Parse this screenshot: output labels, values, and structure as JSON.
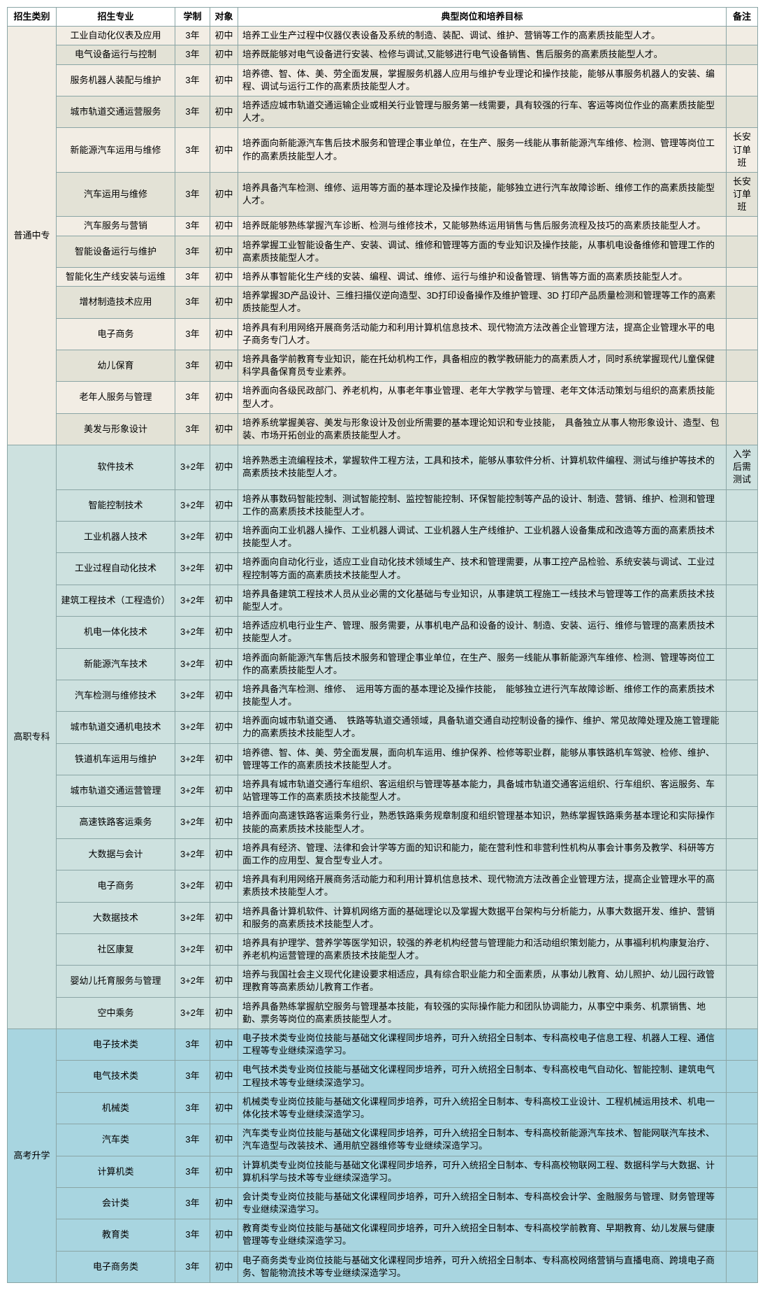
{
  "headers": {
    "cat": "招生类别",
    "major": "招生专业",
    "dur": "学制",
    "obj": "对象",
    "desc": "典型岗位和培养目标",
    "note": "备注"
  },
  "colors": {
    "bg_a": "#f2ede4",
    "bg_b": "#e3e2d6",
    "bg_c": "#cde1df",
    "bg_d": "#a8d5e0",
    "border": "#8aa5a5"
  },
  "sections": [
    {
      "cat": "普通中专",
      "bg_key": "bg_a",
      "alt_bg": true,
      "rows": [
        {
          "major": "工业自动化仪表及应用",
          "dur": "3年",
          "obj": "初中",
          "desc": "培养工业生产过程中仪器仪表设备及系统的制造、装配、调试、维护、营销等工作的高素质技能型人才。",
          "note": ""
        },
        {
          "major": "电气设备运行与控制",
          "dur": "3年",
          "obj": "初中",
          "desc": "培养既能够对电气设备进行安装、检修与调试,又能够进行电气设备销售、售后服务的高素质技能型人才。",
          "note": ""
        },
        {
          "major": "服务机器人装配与维护",
          "dur": "3年",
          "obj": "初中",
          "desc": "培养德、智、体、美、劳全面发展，掌握服务机器人应用与维护专业理论和操作技能，能够从事服务机器人的安装、编程、调试与运行工作的高素质技能型人才。",
          "note": ""
        },
        {
          "major": "城市轨道交通运营服务",
          "dur": "3年",
          "obj": "初中",
          "desc": "培养适应城市轨道交通运输企业或相关行业管理与服务第一线需要，具有较强的行车、客运等岗位作业的高素质技能型人才。",
          "note": ""
        },
        {
          "major": "新能源汽车运用与维修",
          "dur": "3年",
          "obj": "初中",
          "desc": "培养面向新能源汽车售后技术服务和管理企事业单位，在生产、服务一线能从事新能源汽车维修、检测、管理等岗位工作的高素质技能型人才。",
          "note": "长安订单班"
        },
        {
          "major": "汽车运用与维修",
          "dur": "3年",
          "obj": "初中",
          "desc": "培养具备汽车检测、维修、运用等方面的基本理论及操作技能，能够独立进行汽车故障诊断、维修工作的高素质技能型人才。",
          "note": "长安订单班"
        },
        {
          "major": "汽车服务与营销",
          "dur": "3年",
          "obj": "初中",
          "desc": "培养既能够熟练掌握汽车诊断、检测与维修技术，又能够熟练运用销售与售后服务流程及技巧的高素质技能型人才。",
          "note": ""
        },
        {
          "major": "智能设备运行与维护",
          "dur": "3年",
          "obj": "初中",
          "desc": "培养掌握工业智能设备生产、安装、调试、维修和管理等方面的专业知识及操作技能，从事机电设备维修和管理工作的高素质技能型人才。",
          "note": ""
        },
        {
          "major": "智能化生产线安装与运维",
          "dur": "3年",
          "obj": "初中",
          "desc": "培养从事智能化生产线的安装、编程、调试、维修、运行与维护和设备管理、销售等方面的高素质技能型人才。",
          "note": ""
        },
        {
          "major": "增材制造技术应用",
          "dur": "3年",
          "obj": "初中",
          "desc": "培养掌握3D产品设计、三维扫描仪逆向造型、3D打印设备操作及维护管理、3D 打印产品质量检测和管理等工作的高素质技能型人才。",
          "note": ""
        },
        {
          "major": "电子商务",
          "dur": "3年",
          "obj": "初中",
          "desc": "培养具有利用网络开展商务活动能力和利用计算机信息技术、现代物流方法改善企业管理方法，提高企业管理水平的电子商务专门人才。",
          "note": ""
        },
        {
          "major": "幼儿保育",
          "dur": "3年",
          "obj": "初中",
          "desc": "培养具备学前教育专业知识，能在托幼机构工作，具备相应的教学教研能力的高素质人才，同时系统掌握现代儿童保健科学具备保育员专业素养。",
          "note": ""
        },
        {
          "major": "老年人服务与管理",
          "dur": "3年",
          "obj": "初中",
          "desc": "培养面向各级民政部门、养老机构，从事老年事业管理、老年大学教学与管理、老年文体活动策划与组织的高素质技能型人才。",
          "note": ""
        },
        {
          "major": "美发与形象设计",
          "dur": "3年",
          "obj": "初中",
          "desc": "培养系统掌握美容、美发与形象设计及创业所需要的基本理论知识和专业技能，　具备独立从事人物形象设计、造型、包装、市场开拓创业的高素质技能型人才。",
          "note": ""
        }
      ]
    },
    {
      "cat": "高职专科",
      "bg_key": "bg_c",
      "alt_bg": false,
      "rows": [
        {
          "major": "软件技术",
          "dur": "3+2年",
          "obj": "初中",
          "desc": "培养熟悉主流编程技术，掌握软件工程方法，工具和技术，能够从事软件分析、计算机软件编程、测试与维护等技术的高素质技术技能型人才。",
          "note": "入学后需测试"
        },
        {
          "major": "智能控制技术",
          "dur": "3+2年",
          "obj": "初中",
          "desc": "培养从事数码智能控制、测试智能控制、监控智能控制、环保智能控制等产品的设计、制造、营销、维护、检测和管理工作的高素质技术技能型人才。",
          "note": ""
        },
        {
          "major": "工业机器人技术",
          "dur": "3+2年",
          "obj": "初中",
          "desc": "培养面向工业机器人操作、工业机器人调试、工业机器人生产线维护、工业机器人设备集成和改造等方面的高素质技术技能型人才。",
          "note": ""
        },
        {
          "major": "工业过程自动化技术",
          "dur": "3+2年",
          "obj": "初中",
          "desc": "培养面向自动化行业，适应工业自动化技术领域生产、技术和管理需要，从事工控产品检验、系统安装与调试、工业过程控制等方面的高素质技术技能型人才。",
          "note": ""
        },
        {
          "major": "建筑工程技术（工程造价）",
          "dur": "3+2年",
          "obj": "初中",
          "desc": "培养具备建筑工程技术人员从业必需的文化基础与专业知识，从事建筑工程施工一线技术与管理等工作的高素质技术技能型人才。",
          "note": ""
        },
        {
          "major": "机电一体化技术",
          "dur": "3+2年",
          "obj": "初中",
          "desc": "培养适应机电行业生产、管理、服务需要，从事机电产品和设备的设计、制造、安装、运行、维修与管理的高素质技术技能型人才。",
          "note": ""
        },
        {
          "major": "新能源汽车技术",
          "dur": "3+2年",
          "obj": "初中",
          "desc": "培养面向新能源汽车售后技术服务和管理企事业单位，在生产、服务一线能从事新能源汽车维修、检测、管理等岗位工作的高素质技能型人才。",
          "note": ""
        },
        {
          "major": "汽车检测与维修技术",
          "dur": "3+2年",
          "obj": "初中",
          "desc": "培养具备汽车检测、维修、　运用等方面的基本理论及操作技能，　能够独立进行汽车故障诊断、维修工作的高素质技术技能型人才。",
          "note": ""
        },
        {
          "major": "城市轨道交通机电技术",
          "dur": "3+2年",
          "obj": "初中",
          "desc": "培养面向城市轨道交通、　铁路等轨道交通领域，具备轨道交通自动控制设备的操作、维护、常见故障处理及施工管理能力的高素质技术技能型人才。",
          "note": ""
        },
        {
          "major": "铁道机车运用与维护",
          "dur": "3+2年",
          "obj": "初中",
          "desc": "培养德、智、体、美、劳全面发展，面向机车运用、维护保养、检修等职业群，能够从事铁路机车驾驶、检修、维护、管理等工作的高素质技术技能型人才。",
          "note": ""
        },
        {
          "major": "城市轨道交通运营管理",
          "dur": "3+2年",
          "obj": "初中",
          "desc": "培养具有城市轨道交通行车组织、客运组织与管理等基本能力，具备城市轨道交通客运组织、行车组织、客运服务、车站管理等工作的高素质技术技能型人才。",
          "note": ""
        },
        {
          "major": "高速铁路客运乘务",
          "dur": "3+2年",
          "obj": "初中",
          "desc": "培养面向高速铁路客运乘务行业，熟悉铁路乘务规章制度和组织管理基本知识，熟练掌握铁路乘务基本理论和实际操作技能的高素质技术技能型人才。",
          "note": ""
        },
        {
          "major": "大数据与会计",
          "dur": "3+2年",
          "obj": "初中",
          "desc": "培养具有经济、管理、法律和会计学等方面的知识和能力，能在营利性和非营利性机构从事会计事务及教学、科研等方面工作的应用型、复合型专业人才。",
          "note": ""
        },
        {
          "major": "电子商务",
          "dur": "3+2年",
          "obj": "初中",
          "desc": "培养具有利用网络开展商务活动能力和利用计算机信息技术、现代物流方法改善企业管理方法，提高企业管理水平的高素质技术技能型人才。",
          "note": ""
        },
        {
          "major": "大数据技术",
          "dur": "3+2年",
          "obj": "初中",
          "desc": "培养具备计算机软件、计算机网络方面的基础理论以及掌握大数据平台架构与分析能力，从事大数据开发、维护、营销和服务的高素质技术技能型人才。",
          "note": ""
        },
        {
          "major": "社区康复",
          "dur": "3+2年",
          "obj": "初中",
          "desc": "培养具有护理学、营养学等医学知识，较强的养老机构经营与管理能力和活动组织策划能力，从事福利机构康复治疗、养老机构运营管理的高素质技术技能型人才。",
          "note": ""
        },
        {
          "major": "婴幼儿托育服务与管理",
          "dur": "3+2年",
          "obj": "初中",
          "desc": "培养与我国社会主义现代化建设要求相适应，具有综合职业能力和全面素质，从事幼儿教育、幼儿照护、幼儿园行政管理教育等高素质幼儿教育工作者。",
          "note": ""
        },
        {
          "major": "空中乘务",
          "dur": "3+2年",
          "obj": "初中",
          "desc": "培养具备熟练掌握航空服务与管理基本技能，有较强的实际操作能力和团队协调能力，从事空中乘务、机票销售、地勤、票务等岗位的高素质技能型人才。",
          "note": ""
        }
      ]
    },
    {
      "cat": "高考升学",
      "bg_key": "bg_d",
      "alt_bg": false,
      "rows": [
        {
          "major": "电子技术类",
          "dur": "3年",
          "obj": "初中",
          "desc": "电子技术类专业岗位技能与基础文化课程同步培养，可升入统招全日制本、专科高校电子信息工程、机器人工程、通信工程等专业继续深造学习。",
          "note": ""
        },
        {
          "major": "电气技术类",
          "dur": "3年",
          "obj": "初中",
          "desc": "电气技术类专业岗位技能与基础文化课程同步培养，可升入统招全日制本、专科高校电气自动化、智能控制、建筑电气工程技术等专业继续深造学习。",
          "note": ""
        },
        {
          "major": "机械类",
          "dur": "3年",
          "obj": "初中",
          "desc": "机械类专业岗位技能与基础文化课程同步培养，可升入统招全日制本、专科高校工业设计、工程机械运用技术、机电一体化技术等专业继续深造学习。",
          "note": ""
        },
        {
          "major": "汽车类",
          "dur": "3年",
          "obj": "初中",
          "desc": "汽车类专业岗位技能与基础文化课程同步培养，可升入统招全日制本、专科高校新能源汽车技术、智能网联汽车技术、汽车造型与改装技术、通用航空器维修等专业继续深造学习。",
          "note": ""
        },
        {
          "major": "计算机类",
          "dur": "3年",
          "obj": "初中",
          "desc": "计算机类专业岗位技能与基础文化课程同步培养，可升入统招全日制本、专科高校物联网工程、数据科学与大数据、计算机科学与技术等专业继续深造学习。",
          "note": ""
        },
        {
          "major": "会计类",
          "dur": "3年",
          "obj": "初中",
          "desc": "会计类专业岗位技能与基础文化课程同步培养，可升入统招全日制本、专科高校会计学、金融服务与管理、财务管理等专业继续深造学习。",
          "note": ""
        },
        {
          "major": "教育类",
          "dur": "3年",
          "obj": "初中",
          "desc": "教育类专业岗位技能与基础文化课程同步培养，可升入统招全日制本、专科高校学前教育、早期教育、幼儿发展与健康管理等专业继续深造学习。",
          "note": ""
        },
        {
          "major": "电子商务类",
          "dur": "3年",
          "obj": "初中",
          "desc": "电子商务类专业岗位技能与基础文化课程同步培养，可升入统招全日制本、专科高校网络营销与直播电商、跨境电子商务、智能物流技术等专业继续深造学习。",
          "note": ""
        }
      ]
    }
  ]
}
